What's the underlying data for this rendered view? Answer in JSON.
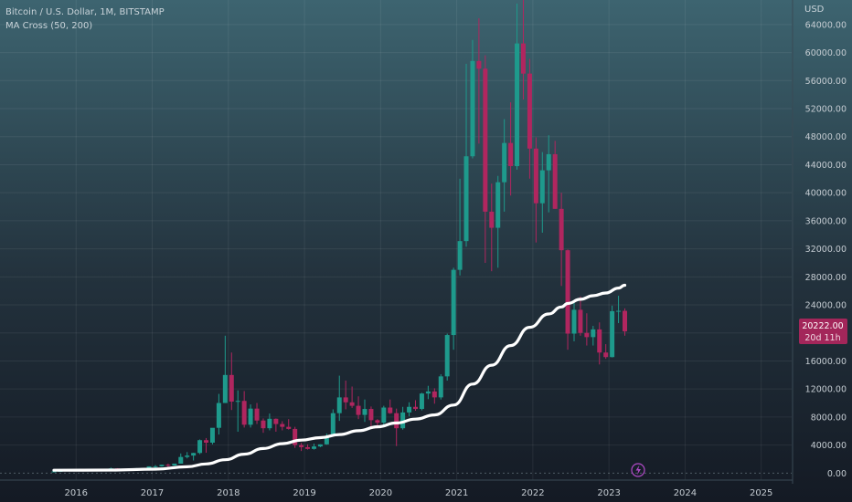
{
  "legend": {
    "symbol": "Bitcoin / U.S. Dollar, 1M, BITSTAMP",
    "indicator": "MA Cross (50, 200)"
  },
  "price_unit": "USD",
  "last_price": "20222.00",
  "countdown": "20d 11h",
  "colors": {
    "background_top": "#3d6470",
    "background_bottom": "#141a24",
    "up": "#1e9a8c",
    "down": "#b0265f",
    "ma": "#ffffff",
    "price_tag": "#a3265a",
    "axis_text": "#c5ccd2",
    "flash_icon": "#b14ac8"
  },
  "chart_data": {
    "type": "candlestick",
    "title": "Bitcoin / U.S. Dollar, 1M, BITSTAMP",
    "ylabel": "USD",
    "ylim": [
      -1000,
      67500
    ],
    "xlim": [
      2015.0,
      2025.4
    ],
    "x_ticks": [
      "2016",
      "2017",
      "2018",
      "2019",
      "2020",
      "2021",
      "2022",
      "2023",
      "2024",
      "2025"
    ],
    "y_ticks": [
      "0.00",
      "4000.00",
      "8000.00",
      "12000.00",
      "16000.00",
      "20000.00",
      "24000.00",
      "28000.00",
      "32000.00",
      "36000.00",
      "40000.00",
      "44000.00",
      "48000.00",
      "52000.00",
      "56000.00",
      "60000.00",
      "64000.00"
    ],
    "grid": true,
    "series": [
      {
        "name": "Bitcoin / U.S. Dollar",
        "type": "candlestick",
        "fields": [
          "date",
          "open",
          "high",
          "low",
          "close"
        ],
        "candles": [
          [
            "2015-09",
            230,
            260,
            220,
            236
          ],
          [
            "2015-10",
            236,
            330,
            230,
            314
          ],
          [
            "2015-11",
            314,
            500,
            300,
            378
          ],
          [
            "2015-12",
            378,
            460,
            350,
            430
          ],
          [
            "2016-01",
            430,
            460,
            360,
            370
          ],
          [
            "2016-02",
            370,
            440,
            365,
            436
          ],
          [
            "2016-03",
            436,
            440,
            400,
            416
          ],
          [
            "2016-04",
            416,
            470,
            410,
            448
          ],
          [
            "2016-05",
            448,
            550,
            440,
            530
          ],
          [
            "2016-06",
            530,
            780,
            520,
            670
          ],
          [
            "2016-07",
            670,
            700,
            600,
            624
          ],
          [
            "2016-08",
            624,
            630,
            520,
            575
          ],
          [
            "2016-09",
            575,
            620,
            570,
            608
          ],
          [
            "2016-10",
            608,
            720,
            600,
            700
          ],
          [
            "2016-11",
            700,
            750,
            690,
            740
          ],
          [
            "2016-12",
            740,
            970,
            740,
            963
          ],
          [
            "2017-01",
            963,
            1150,
            750,
            970
          ],
          [
            "2017-02",
            970,
            1200,
            920,
            1190
          ],
          [
            "2017-03",
            1190,
            1350,
            890,
            1080
          ],
          [
            "2017-04",
            1080,
            1350,
            1060,
            1350
          ],
          [
            "2017-05",
            1350,
            2800,
            1350,
            2300
          ],
          [
            "2017-06",
            2300,
            3000,
            2100,
            2500
          ],
          [
            "2017-07",
            2500,
            2900,
            1800,
            2870
          ],
          [
            "2017-08",
            2870,
            4800,
            2700,
            4700
          ],
          [
            "2017-09",
            4700,
            5000,
            2900,
            4340
          ],
          [
            "2017-10",
            4340,
            6400,
            4100,
            6460
          ],
          [
            "2017-11",
            6460,
            11300,
            5500,
            10000
          ],
          [
            "2017-12",
            10000,
            19600,
            10000,
            14000
          ],
          [
            "2018-01",
            14000,
            17200,
            9000,
            10200
          ],
          [
            "2018-02",
            10200,
            11800,
            5900,
            10300
          ],
          [
            "2018-03",
            10300,
            11700,
            6500,
            6900
          ],
          [
            "2018-04",
            6900,
            9800,
            6500,
            9200
          ],
          [
            "2018-05",
            9200,
            10000,
            7000,
            7500
          ],
          [
            "2018-06",
            7500,
            7800,
            5750,
            6400
          ],
          [
            "2018-07",
            6400,
            8500,
            6100,
            7750
          ],
          [
            "2018-08",
            7750,
            7800,
            5900,
            7000
          ],
          [
            "2018-09",
            7000,
            7400,
            6100,
            6600
          ],
          [
            "2018-10",
            6600,
            7700,
            6200,
            6300
          ],
          [
            "2018-11",
            6300,
            6600,
            3600,
            4000
          ],
          [
            "2018-12",
            4000,
            4300,
            3150,
            3700
          ],
          [
            "2019-01",
            3700,
            4100,
            3350,
            3450
          ],
          [
            "2019-02",
            3450,
            4200,
            3350,
            3800
          ],
          [
            "2019-03",
            3800,
            4100,
            3700,
            4100
          ],
          [
            "2019-04",
            4100,
            5650,
            4050,
            5300
          ],
          [
            "2019-05",
            5300,
            9100,
            5300,
            8550
          ],
          [
            "2019-06",
            8550,
            13900,
            7450,
            10800
          ],
          [
            "2019-07",
            10800,
            13200,
            9100,
            10100
          ],
          [
            "2019-08",
            10100,
            12350,
            9300,
            9600
          ],
          [
            "2019-09",
            9600,
            10950,
            7700,
            8300
          ],
          [
            "2019-10",
            8300,
            10500,
            7300,
            9150
          ],
          [
            "2019-11",
            9150,
            9500,
            6550,
            7550
          ],
          [
            "2019-12",
            7550,
            7700,
            6450,
            7200
          ],
          [
            "2020-01",
            7200,
            9600,
            6850,
            9350
          ],
          [
            "2020-02",
            9350,
            10500,
            8450,
            8550
          ],
          [
            "2020-03",
            8550,
            9200,
            3850,
            6400
          ],
          [
            "2020-04",
            6400,
            9450,
            6200,
            8650
          ],
          [
            "2020-05",
            8650,
            10100,
            8100,
            9450
          ],
          [
            "2020-06",
            9450,
            10400,
            8900,
            9150
          ],
          [
            "2020-07",
            9150,
            11450,
            8950,
            11350
          ],
          [
            "2020-08",
            11350,
            12450,
            10550,
            11650
          ],
          [
            "2020-09",
            11650,
            12100,
            9900,
            10800
          ],
          [
            "2020-10",
            10800,
            14100,
            10500,
            13800
          ],
          [
            "2020-11",
            13800,
            19900,
            13200,
            19700
          ],
          [
            "2020-12",
            19700,
            29300,
            17600,
            29000
          ],
          [
            "2021-01",
            29000,
            42000,
            28200,
            33100
          ],
          [
            "2021-02",
            33100,
            58400,
            32300,
            45200
          ],
          [
            "2021-03",
            45200,
            61800,
            44900,
            58800
          ],
          [
            "2021-04",
            58800,
            64900,
            47000,
            57700
          ],
          [
            "2021-05",
            57700,
            59600,
            30000,
            37300
          ],
          [
            "2021-06",
            37300,
            41300,
            28800,
            35000
          ],
          [
            "2021-07",
            35000,
            42400,
            29300,
            41500
          ],
          [
            "2021-08",
            41500,
            50500,
            37300,
            47100
          ],
          [
            "2021-09",
            47100,
            52900,
            39600,
            43800
          ],
          [
            "2021-10",
            43800,
            67000,
            43300,
            61300
          ],
          [
            "2021-11",
            61300,
            69000,
            53300,
            57000
          ],
          [
            "2021-12",
            57000,
            59100,
            42000,
            46300
          ],
          [
            "2022-01",
            46300,
            47900,
            32900,
            38500
          ],
          [
            "2022-02",
            38500,
            45800,
            34300,
            43200
          ],
          [
            "2022-03",
            43200,
            48200,
            37200,
            45500
          ],
          [
            "2022-04",
            45500,
            47400,
            37700,
            37700
          ],
          [
            "2022-05",
            37700,
            40000,
            26700,
            31800
          ],
          [
            "2022-06",
            31800,
            31900,
            17600,
            19900
          ],
          [
            "2022-07",
            19900,
            24700,
            18800,
            23300
          ],
          [
            "2022-08",
            23300,
            25200,
            19600,
            20000
          ],
          [
            "2022-09",
            20000,
            22800,
            18200,
            19400
          ],
          [
            "2022-10",
            19400,
            21000,
            18200,
            20500
          ],
          [
            "2022-11",
            20500,
            21500,
            15500,
            17200
          ],
          [
            "2022-12",
            17200,
            18400,
            16300,
            16550
          ],
          [
            "2023-01",
            16550,
            23900,
            16500,
            23100
          ],
          [
            "2023-02",
            23100,
            25300,
            21400,
            23150
          ],
          [
            "2023-03",
            23150,
            23500,
            19600,
            20222
          ]
        ]
      },
      {
        "name": "MA Cross (50, 200)",
        "type": "line",
        "points": [
          [
            "2015-09",
            400
          ],
          [
            "2016-06",
            430
          ],
          [
            "2017-01",
            560
          ],
          [
            "2017-06",
            900
          ],
          [
            "2017-09",
            1300
          ],
          [
            "2017-12",
            1900
          ],
          [
            "2018-03",
            2700
          ],
          [
            "2018-06",
            3500
          ],
          [
            "2018-09",
            4200
          ],
          [
            "2018-12",
            4700
          ],
          [
            "2019-03",
            5050
          ],
          [
            "2019-06",
            5500
          ],
          [
            "2019-09",
            6050
          ],
          [
            "2019-12",
            6600
          ],
          [
            "2020-03",
            7150
          ],
          [
            "2020-06",
            7700
          ],
          [
            "2020-09",
            8300
          ],
          [
            "2020-12",
            9700
          ],
          [
            "2021-03",
            12700
          ],
          [
            "2021-06",
            15400
          ],
          [
            "2021-09",
            18200
          ],
          [
            "2021-12",
            20800
          ],
          [
            "2022-03",
            22700
          ],
          [
            "2022-05",
            23700
          ],
          [
            "2022-06",
            24200
          ],
          [
            "2022-08",
            24800
          ],
          [
            "2022-10",
            25300
          ],
          [
            "2022-12",
            25700
          ],
          [
            "2023-02",
            26400
          ],
          [
            "2023-03",
            26800
          ]
        ]
      }
    ],
    "annotations": [
      "20222.00",
      "20d 11h"
    ]
  }
}
